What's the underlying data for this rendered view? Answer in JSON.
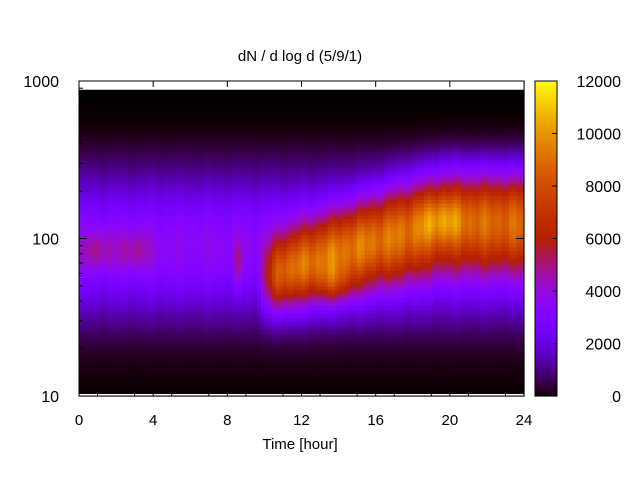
{
  "chart_data": {
    "type": "heatmap",
    "title": "dN / d log d (5/9/1)",
    "xlabel": "Time [hour]",
    "ylabel": "",
    "x_range": [
      0,
      24
    ],
    "x_ticks": [
      0,
      4,
      8,
      12,
      16,
      20,
      24
    ],
    "y_scale": "log",
    "y_range": [
      10,
      1000
    ],
    "y_ticks": [
      10,
      100,
      1000
    ],
    "y_data_range": [
      10,
      900
    ],
    "colorbar": {
      "range": [
        0,
        12000
      ],
      "ticks": [
        0,
        2000,
        4000,
        6000,
        8000,
        10000,
        12000
      ],
      "colormap": "gnuplot-rgbformulae-7-5-15",
      "position": "right"
    },
    "grid": false,
    "description_points": [
      {
        "time": 1,
        "diameter": 85,
        "value": 5200
      },
      {
        "time": 3,
        "diameter": 85,
        "value": 5000
      },
      {
        "time": 6,
        "diameter": 100,
        "value": 3800
      },
      {
        "time": 8.5,
        "diameter": 70,
        "value": 5300
      },
      {
        "time": 11,
        "diameter": 60,
        "value": 8000
      },
      {
        "time": 12.5,
        "diameter": 50,
        "value": 9000
      },
      {
        "time": 14,
        "diameter": 50,
        "value": 10500
      },
      {
        "time": 15,
        "diameter": 80,
        "value": 9000
      },
      {
        "time": 16.5,
        "diameter": 100,
        "value": 8500
      },
      {
        "time": 17.5,
        "diameter": 110,
        "value": 8500
      },
      {
        "time": 19.5,
        "diameter": 130,
        "value": 10000
      },
      {
        "time": 22,
        "diameter": 130,
        "value": 9500
      },
      {
        "time": 23.5,
        "diameter": 130,
        "value": 9000
      }
    ]
  }
}
